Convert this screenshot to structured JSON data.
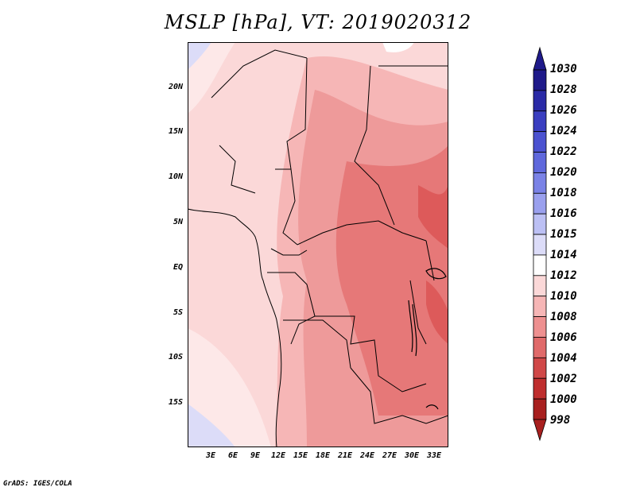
{
  "title": "MSLP [hPa], VT: 2019020312",
  "footer": "GrADS: IGES/COLA",
  "map": {
    "lon_range": [
      0,
      35
    ],
    "lat_range": [
      -20,
      25
    ],
    "y_ticks": [
      "20N",
      "15N",
      "10N",
      "5N",
      "EQ",
      "5S",
      "10S",
      "15S"
    ],
    "x_ticks": [
      "3E",
      "6E",
      "9E",
      "12E",
      "15E",
      "18E",
      "21E",
      "24E",
      "27E",
      "30E",
      "33E"
    ]
  },
  "colorbar": {
    "labels": [
      "1030",
      "1028",
      "1026",
      "1024",
      "1022",
      "1020",
      "1018",
      "1016",
      "1015",
      "1014",
      "1012",
      "1010",
      "1008",
      "1006",
      "1004",
      "1002",
      "1000",
      "998"
    ],
    "colors": [
      "#1f1a8a",
      "#2a2aa6",
      "#3a3ec0",
      "#4b52d0",
      "#5f68dc",
      "#7a82e6",
      "#9aa0ee",
      "#bcc0f4",
      "#dcdcf8",
      "#ffffff",
      "#fbd8d8",
      "#f6b6b6",
      "#ee9090",
      "#e06a6a",
      "#d04848",
      "#bf2e2e",
      "#a8201f"
    ]
  }
}
